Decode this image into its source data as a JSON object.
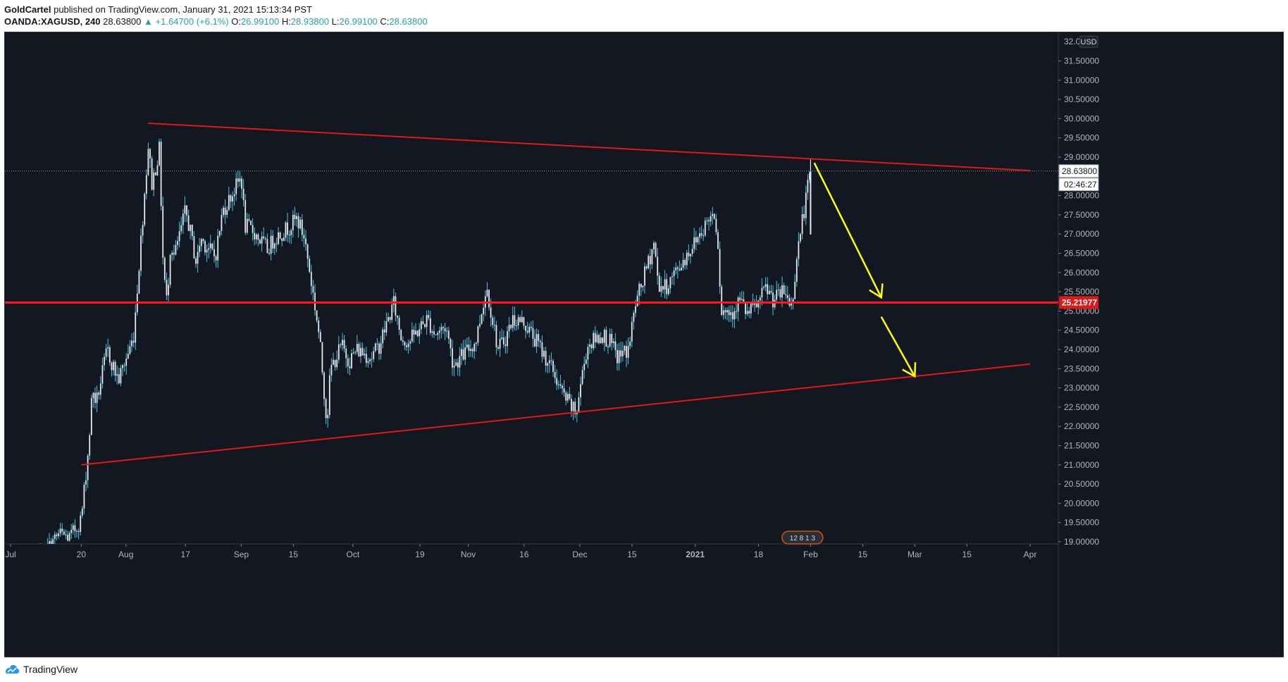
{
  "header": {
    "author": "GoldCartel",
    "published_text": "published on TradingView.com, January 31, 2021 15:13:34 PST",
    "symbol": "OANDA:XAGUSD",
    "interval": ", 240",
    "last": "28.63800",
    "change": "▲ +1.64700 (+6.1%)",
    "open_label": "O:",
    "open": "26.99100",
    "high_label": "H:",
    "high": "28.93800",
    "low_label": "L:",
    "low": "26.99100",
    "close_label": "C:",
    "close": "28.63800"
  },
  "footer": {
    "brand": "TradingView"
  },
  "colors": {
    "background": "#131722",
    "candle": "#e6e8ee",
    "candle_wick": "#4fc3e0",
    "trendline": "#e01818",
    "support": "#ff1a1a",
    "arrow": "#ffff00",
    "axis_text": "#b2b5be",
    "price_tag": "#ffffff",
    "support_tag": "#e01818"
  },
  "chart_data": {
    "type": "candlestick",
    "symbol": "OANDA:XAGUSD",
    "interval": "240",
    "currency": "USD",
    "y_axis": {
      "ylim": [
        18.5,
        32.4
      ],
      "tick_labels": [
        "19.00000",
        "19.50000",
        "20.00000",
        "20.50000",
        "21.00000",
        "21.50000",
        "22.00000",
        "22.50000",
        "23.00000",
        "23.50000",
        "24.00000",
        "24.50000",
        "25.00000",
        "25.50000",
        "26.00000",
        "26.50000",
        "27.00000",
        "27.50000",
        "28.00000",
        "28.50000",
        "29.00000",
        "29.50000",
        "30.00000",
        "30.50000",
        "31.00000",
        "31.50000"
      ],
      "currency_label": "USD",
      "top_label": "32.0000"
    },
    "x_axis": {
      "tick_labels": [
        "Jul",
        "20",
        "Aug",
        "17",
        "Sep",
        "15",
        "Oct",
        "19",
        "Nov",
        "16",
        "Dec",
        "15",
        "2021",
        "18",
        "Feb",
        "15",
        "Mar",
        "15",
        "Apr"
      ],
      "tick_dates": [
        "2020-07-01",
        "2020-07-20",
        "2020-08-01",
        "2020-08-17",
        "2020-09-01",
        "2020-09-15",
        "2020-10-01",
        "2020-10-19",
        "2020-11-01",
        "2020-11-16",
        "2020-12-01",
        "2020-12-15",
        "2021-01-01",
        "2021-01-18",
        "2021-02-01",
        "2021-02-15",
        "2021-03-01",
        "2021-03-15",
        "2021-04-01"
      ],
      "bold_labels": [
        "2021"
      ]
    },
    "price_path": [
      [
        "2020-07-06",
        18.2
      ],
      [
        "2020-07-10",
        18.7
      ],
      [
        "2020-07-14",
        19.2
      ],
      [
        "2020-07-17",
        19.1
      ],
      [
        "2020-07-20",
        19.6
      ],
      [
        "2020-07-22",
        21.5
      ],
      [
        "2020-07-23",
        23.0
      ],
      [
        "2020-07-24",
        22.6
      ],
      [
        "2020-07-27",
        24.0
      ],
      [
        "2020-07-28",
        23.7
      ],
      [
        "2020-07-30",
        23.2
      ],
      [
        "2020-08-03",
        24.3
      ],
      [
        "2020-08-05",
        26.8
      ],
      [
        "2020-08-07",
        29.3
      ],
      [
        "2020-08-08",
        28.3
      ],
      [
        "2020-08-10",
        29.2
      ],
      [
        "2020-08-11",
        26.2
      ],
      [
        "2020-08-12",
        25.2
      ],
      [
        "2020-08-13",
        26.8
      ],
      [
        "2020-08-14",
        26.4
      ],
      [
        "2020-08-17",
        27.6
      ],
      [
        "2020-08-18",
        27.2
      ],
      [
        "2020-08-20",
        26.2
      ],
      [
        "2020-08-21",
        26.9
      ],
      [
        "2020-08-25",
        26.4
      ],
      [
        "2020-08-27",
        27.6
      ],
      [
        "2020-08-31",
        28.3
      ],
      [
        "2020-09-01",
        28.5
      ],
      [
        "2020-09-02",
        27.2
      ],
      [
        "2020-09-04",
        27.1
      ],
      [
        "2020-09-08",
        26.6
      ],
      [
        "2020-09-10",
        26.9
      ],
      [
        "2020-09-14",
        27.2
      ],
      [
        "2020-09-16",
        27.4
      ],
      [
        "2020-09-18",
        26.9
      ],
      [
        "2020-09-21",
        25.0
      ],
      [
        "2020-09-22",
        24.3
      ],
      [
        "2020-09-23",
        23.2
      ],
      [
        "2020-09-24",
        22.1
      ],
      [
        "2020-09-25",
        23.5
      ],
      [
        "2020-09-28",
        24.1
      ],
      [
        "2020-09-30",
        23.7
      ],
      [
        "2020-10-02",
        24.0
      ],
      [
        "2020-10-06",
        23.8
      ],
      [
        "2020-10-08",
        24.1
      ],
      [
        "2020-10-12",
        25.2
      ],
      [
        "2020-10-14",
        24.3
      ],
      [
        "2020-10-16",
        24.2
      ],
      [
        "2020-10-21",
        24.8
      ],
      [
        "2020-10-23",
        24.4
      ],
      [
        "2020-10-26",
        24.6
      ],
      [
        "2020-10-28",
        23.6
      ],
      [
        "2020-10-30",
        23.8
      ],
      [
        "2020-11-03",
        24.2
      ],
      [
        "2020-11-05",
        25.2
      ],
      [
        "2020-11-06",
        25.6
      ],
      [
        "2020-11-09",
        24.0
      ],
      [
        "2020-11-11",
        24.3
      ],
      [
        "2020-11-13",
        24.8
      ],
      [
        "2020-11-16",
        24.7
      ],
      [
        "2020-11-18",
        24.4
      ],
      [
        "2020-11-20",
        24.1
      ],
      [
        "2020-11-24",
        23.4
      ],
      [
        "2020-11-26",
        22.9
      ],
      [
        "2020-11-30",
        22.3
      ],
      [
        "2020-12-01",
        23.0
      ],
      [
        "2020-12-03",
        24.1
      ],
      [
        "2020-12-07",
        24.4
      ],
      [
        "2020-12-09",
        24.2
      ],
      [
        "2020-12-11",
        23.8
      ],
      [
        "2020-12-14",
        24.0
      ],
      [
        "2020-12-16",
        25.2
      ],
      [
        "2020-12-18",
        25.8
      ],
      [
        "2020-12-21",
        26.8
      ],
      [
        "2020-12-22",
        25.7
      ],
      [
        "2020-12-24",
        25.6
      ],
      [
        "2020-12-28",
        26.2
      ],
      [
        "2020-12-30",
        26.5
      ],
      [
        "2021-01-04",
        27.3
      ],
      [
        "2021-01-06",
        27.6
      ],
      [
        "2021-01-07",
        27.0
      ],
      [
        "2021-01-08",
        25.0
      ],
      [
        "2021-01-11",
        25.0
      ],
      [
        "2021-01-13",
        25.3
      ],
      [
        "2021-01-15",
        24.9
      ],
      [
        "2021-01-18",
        25.2
      ],
      [
        "2021-01-20",
        25.6
      ],
      [
        "2021-01-22",
        25.3
      ],
      [
        "2021-01-25",
        25.5
      ],
      [
        "2021-01-27",
        25.1
      ],
      [
        "2021-01-28",
        26.2
      ],
      [
        "2021-01-29",
        26.9
      ],
      [
        "2021-02-01",
        28.64
      ]
    ],
    "last_price": {
      "value": 28.638,
      "label": "28.63800",
      "countdown": "02:46:27"
    },
    "drawings": {
      "resistance_line": {
        "from": [
          "2020-08-07",
          29.88
        ],
        "to": [
          "2021-04-01",
          28.65
        ]
      },
      "support_line": {
        "from": [
          "2020-07-20",
          21.0
        ],
        "to": [
          "2021-04-01",
          23.62
        ]
      },
      "horizontal_level": {
        "value": 25.21977,
        "label": "25.21977"
      },
      "arrows": [
        {
          "from": [
            "2021-02-02",
            28.85
          ],
          "to": [
            "2021-02-20",
            25.35
          ]
        },
        {
          "from": [
            "2021-02-20",
            24.85
          ],
          "to": [
            "2021-03-01",
            23.3
          ]
        }
      ]
    },
    "event_markers": {
      "date": "2021-01-30",
      "labels": [
        "12",
        "8",
        "1",
        "3"
      ]
    }
  }
}
